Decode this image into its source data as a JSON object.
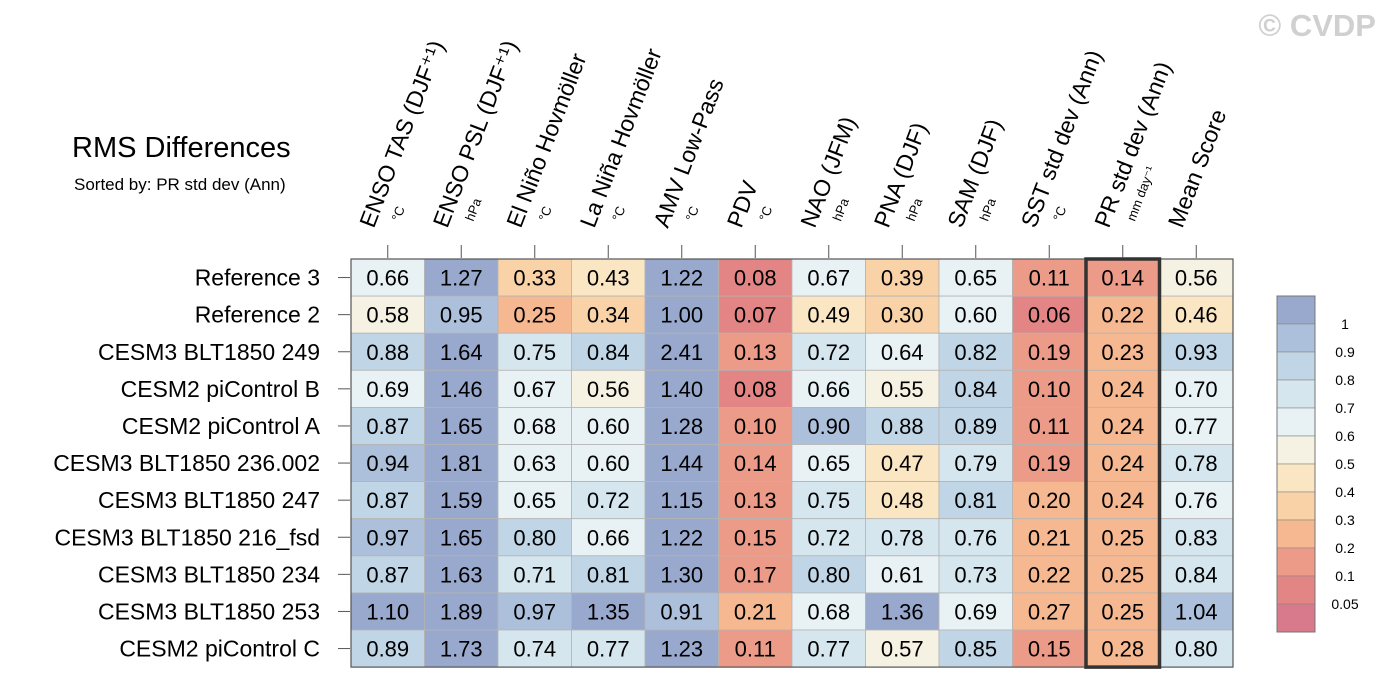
{
  "chart_data": {
    "type": "heatmap",
    "title": "RMS Differences",
    "subtitle": "Sorted by: PR std dev (Ann)",
    "watermark": "© CVDP",
    "columns": [
      {
        "label": "ENSO TAS (DJF⁺¹)",
        "unit": "°C"
      },
      {
        "label": "ENSO PSL (DJF⁺¹)",
        "unit": "hPa"
      },
      {
        "label": "El Niño Hovmöller",
        "unit": "°C"
      },
      {
        "label": "La Niña Hovmöller",
        "unit": "°C"
      },
      {
        "label": "AMV Low-Pass",
        "unit": "°C"
      },
      {
        "label": "PDV",
        "unit": "°C"
      },
      {
        "label": "NAO (JFM)",
        "unit": "hPa"
      },
      {
        "label": "PNA (DJF)",
        "unit": "hPa"
      },
      {
        "label": "SAM (DJF)",
        "unit": "hPa"
      },
      {
        "label": "SST std dev (Ann)",
        "unit": "°C"
      },
      {
        "label": "PR std dev (Ann)",
        "unit": "mm day⁻¹"
      },
      {
        "label": "Mean Score",
        "unit": ""
      }
    ],
    "highlighted_column": "PR std dev (Ann)",
    "rows": [
      "Reference 3",
      "Reference 2",
      "CESM3 BLT1850 249",
      "CESM2 piControl B",
      "CESM2 piControl A",
      "CESM3 BLT1850 236.002",
      "CESM3 BLT1850 247",
      "CESM3 BLT1850 216_fsd",
      "CESM3 BLT1850 234",
      "CESM3 BLT1850 253",
      "CESM2 piControl C"
    ],
    "values": [
      [
        "0.66",
        "1.27",
        "0.33",
        "0.43",
        "1.22",
        "0.08",
        "0.67",
        "0.39",
        "0.65",
        "0.11",
        "0.14",
        "0.56"
      ],
      [
        "0.58",
        "0.95",
        "0.25",
        "0.34",
        "1.00",
        "0.07",
        "0.49",
        "0.30",
        "0.60",
        "0.06",
        "0.22",
        "0.46"
      ],
      [
        "0.88",
        "1.64",
        "0.75",
        "0.84",
        "2.41",
        "0.13",
        "0.72",
        "0.64",
        "0.82",
        "0.19",
        "0.23",
        "0.93"
      ],
      [
        "0.69",
        "1.46",
        "0.67",
        "0.56",
        "1.40",
        "0.08",
        "0.66",
        "0.55",
        "0.84",
        "0.10",
        "0.24",
        "0.70"
      ],
      [
        "0.87",
        "1.65",
        "0.68",
        "0.60",
        "1.28",
        "0.10",
        "0.90",
        "0.88",
        "0.89",
        "0.11",
        "0.24",
        "0.77"
      ],
      [
        "0.94",
        "1.81",
        "0.63",
        "0.60",
        "1.44",
        "0.14",
        "0.65",
        "0.47",
        "0.79",
        "0.19",
        "0.24",
        "0.78"
      ],
      [
        "0.87",
        "1.59",
        "0.65",
        "0.72",
        "1.15",
        "0.13",
        "0.75",
        "0.48",
        "0.81",
        "0.20",
        "0.24",
        "0.76"
      ],
      [
        "0.97",
        "1.65",
        "0.80",
        "0.66",
        "1.22",
        "0.15",
        "0.72",
        "0.78",
        "0.76",
        "0.21",
        "0.25",
        "0.83"
      ],
      [
        "0.87",
        "1.63",
        "0.71",
        "0.81",
        "1.30",
        "0.17",
        "0.80",
        "0.61",
        "0.73",
        "0.22",
        "0.25",
        "0.84"
      ],
      [
        "1.10",
        "1.89",
        "0.97",
        "1.35",
        "0.91",
        "0.21",
        "0.68",
        "1.36",
        "0.69",
        "0.27",
        "0.25",
        "1.04"
      ],
      [
        "0.89",
        "1.73",
        "0.74",
        "0.77",
        "1.23",
        "0.11",
        "0.77",
        "0.57",
        "0.85",
        "0.15",
        "0.28",
        "0.80"
      ]
    ],
    "colorbar": {
      "ticks": [
        "1",
        "0.9",
        "0.8",
        "0.7",
        "0.6",
        "0.5",
        "0.4",
        "0.3",
        "0.2",
        "0.1",
        "0.05"
      ],
      "colors": [
        "#99a8cd",
        "#acc0db",
        "#c0d5e5",
        "#d5e6ee",
        "#e8f1f3",
        "#f5f2e3",
        "#fbe6c3",
        "#f9d2a7",
        "#f5b891",
        "#ec9b89",
        "#e38585",
        "#d8798c"
      ]
    }
  }
}
